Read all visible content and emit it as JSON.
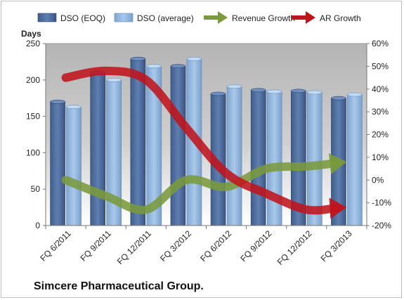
{
  "company": "Simcere Pharmaceutical Group.",
  "chart_data": {
    "type": "bar",
    "categories": [
      "FQ 6/2011",
      "FQ 9/2011",
      "FQ 12/2011",
      "FQ 3/2012",
      "FQ 6/2012",
      "FQ 9/2012",
      "FQ 12/2012",
      "FQ 3/2013"
    ],
    "ylabel": "Days",
    "ylim": [
      0,
      250
    ],
    "yticks": [
      "0",
      "50",
      "100",
      "150",
      "200",
      "250"
    ],
    "y2lim": [
      -20,
      60
    ],
    "y2ticks": [
      "-20%",
      "-10%",
      "0%",
      "10%",
      "20%",
      "30%",
      "40%",
      "50%",
      "60%"
    ],
    "legend_position": "top",
    "grid": false,
    "series": [
      {
        "name": "DSO (EOQ)",
        "kind": "bar",
        "axis": "left",
        "color": "#4a6a9a",
        "values": [
          170,
          210,
          229,
          219,
          181,
          186,
          185,
          175
        ]
      },
      {
        "name": "DSO (average)",
        "kind": "bar",
        "axis": "left",
        "color": "#8fb4dd",
        "values": [
          163,
          200,
          219,
          229,
          191,
          184,
          183,
          180
        ]
      },
      {
        "name": "Revenue Growth",
        "kind": "line",
        "axis": "right",
        "color": "#7a9a3c",
        "values": [
          0,
          -7,
          -13,
          0,
          -3,
          5,
          6,
          8
        ]
      },
      {
        "name": "AR Growth",
        "kind": "line",
        "axis": "right",
        "color": "#c0141c",
        "values": [
          45,
          48,
          44,
          23,
          3,
          -6,
          -13,
          -12
        ]
      }
    ]
  }
}
